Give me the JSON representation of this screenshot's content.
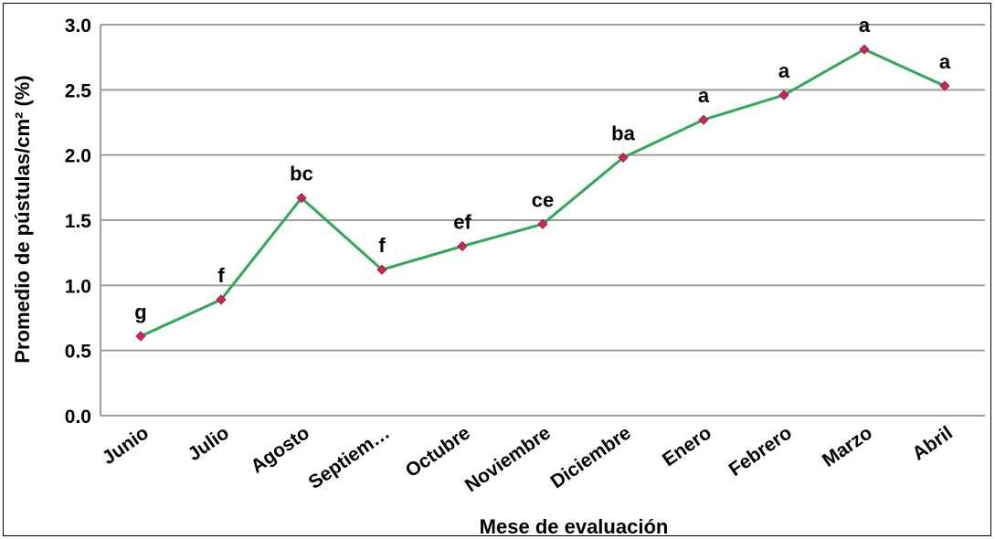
{
  "chart_data": {
    "type": "line",
    "title": "",
    "xlabel": "Mese de evaluación",
    "ylabel": "Promedio de pústulas/cm² (%)",
    "categories": [
      "Junio",
      "Julio",
      "Agosto",
      "Septiem…",
      "Octubre",
      "Noviembre",
      "Diciembre",
      "Enero",
      "Febrero",
      "Marzo",
      "Abril"
    ],
    "series": [
      {
        "values": [
          0.61,
          0.89,
          1.67,
          1.12,
          1.3,
          1.47,
          1.98,
          2.27,
          2.46,
          2.81,
          2.53
        ],
        "letters": [
          "g",
          "f",
          "bc",
          "f",
          "ef",
          "ce",
          "ba",
          "a",
          "a",
          "a",
          "a"
        ]
      }
    ],
    "ylim": [
      0,
      3
    ],
    "yticks": [
      "0.0",
      "0.5",
      "1.0",
      "1.5",
      "2.0",
      "2.5",
      "3.0"
    ],
    "grid": true,
    "colors": {
      "line": "#2eaa55",
      "marker": "#d0245a",
      "grid": "#9e9e9e"
    }
  }
}
